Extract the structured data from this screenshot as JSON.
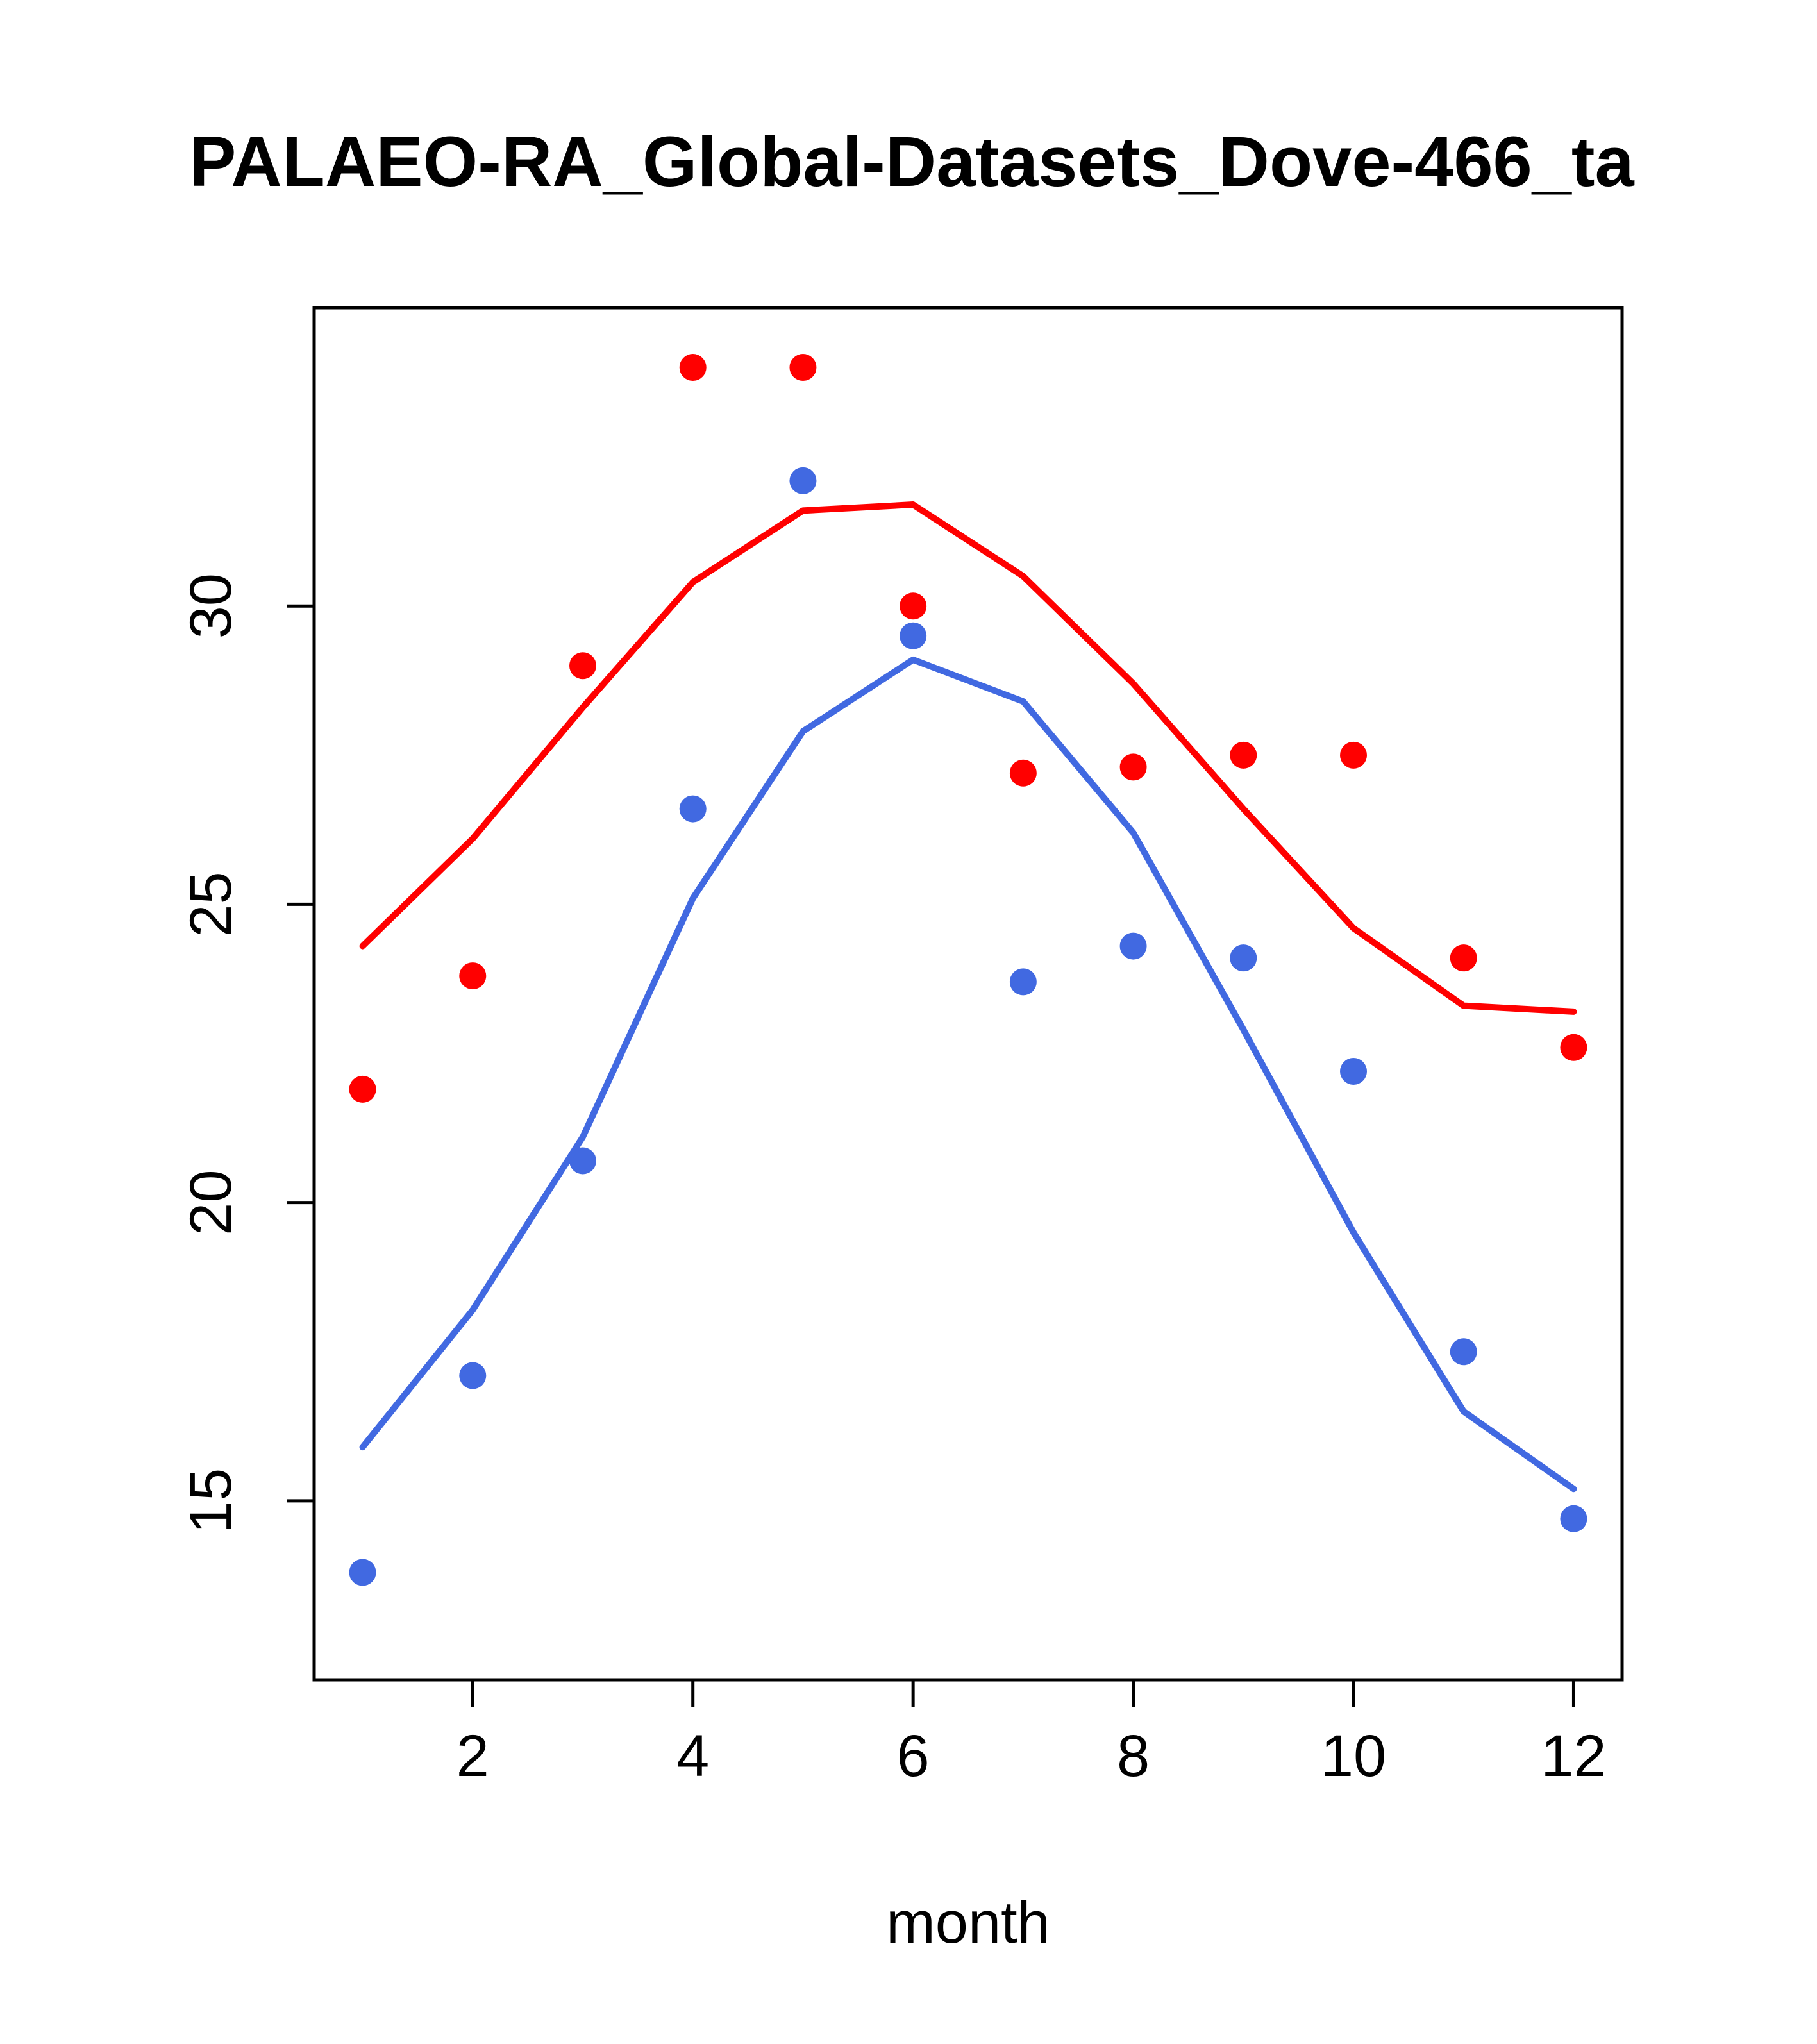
{
  "chart_data": {
    "type": "scatter",
    "title": "PALAEO-RA_Global-Datasets_Dove-466_ta",
    "xlabel": "month",
    "ylabel": "",
    "grid": false,
    "legend_position": "none",
    "axis_color": "#000000",
    "background_color": "#ffffff",
    "x": [
      1,
      2,
      3,
      4,
      5,
      6,
      7,
      8,
      9,
      10,
      11,
      12
    ],
    "xticks": [
      2,
      4,
      6,
      8,
      10,
      12
    ],
    "yticks": [
      15,
      20,
      25,
      30
    ],
    "xlim": [
      0.56,
      12.44
    ],
    "ylim": [
      12.0,
      35.0
    ],
    "series": [
      {
        "name": "red-points",
        "style": "points",
        "color": "#ff0000",
        "values": [
          21.9,
          23.8,
          29.0,
          34.0,
          34.0,
          30.0,
          27.2,
          27.3,
          27.5,
          27.5,
          24.1,
          22.6
        ]
      },
      {
        "name": "red-line",
        "style": "line",
        "color": "#ff0000",
        "values": [
          24.3,
          26.1,
          28.3,
          30.4,
          31.6,
          31.7,
          30.5,
          28.7,
          26.6,
          24.6,
          23.3,
          23.2
        ]
      },
      {
        "name": "blue-points",
        "style": "points",
        "color": "#4169e1",
        "values": [
          13.8,
          17.1,
          20.7,
          26.6,
          32.1,
          29.5,
          23.7,
          24.3,
          24.1,
          22.2,
          17.5,
          14.7
        ]
      },
      {
        "name": "blue-line",
        "style": "line",
        "color": "#4169e1",
        "values": [
          15.9,
          18.2,
          21.1,
          25.1,
          27.9,
          29.1,
          28.4,
          26.2,
          22.9,
          19.5,
          16.5,
          15.2
        ]
      }
    ]
  }
}
